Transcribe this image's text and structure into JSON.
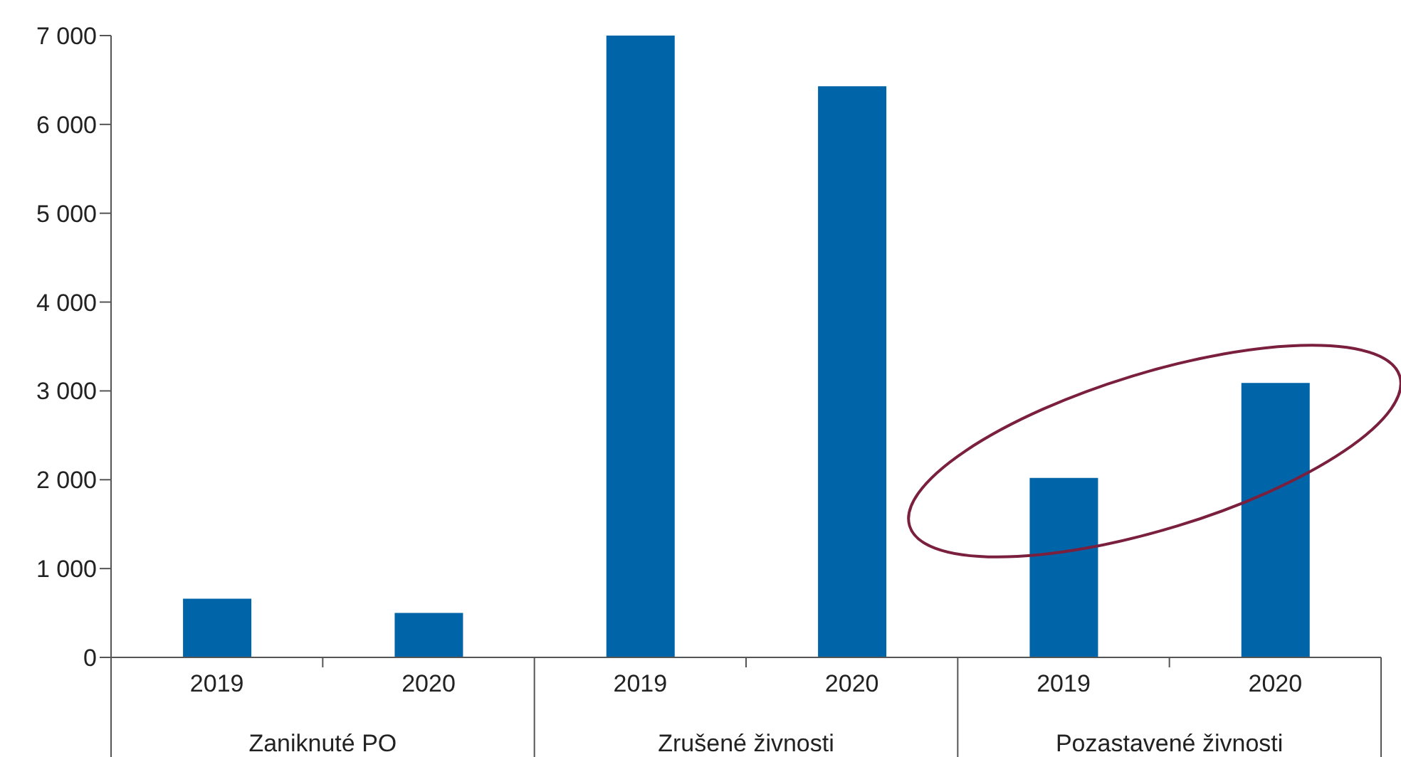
{
  "chart_data": {
    "type": "bar",
    "categories": [
      "2019",
      "2020",
      "2019",
      "2020",
      "2019",
      "2020"
    ],
    "values": [
      660,
      500,
      7000,
      6430,
      2020,
      3090
    ],
    "color": "#0064a8",
    "ylim": [
      0,
      7000
    ],
    "yticks": [
      0,
      {
        "value": 1000,
        "label": "1 000"
      },
      {
        "value": 2000,
        "label": "2 000"
      },
      {
        "value": 3000,
        "label": "3 000"
      },
      {
        "value": 4000,
        "label": "4 000"
      },
      {
        "value": 5000,
        "label": "5 000"
      },
      {
        "value": 6000,
        "label": "6 000"
      },
      {
        "value": 7000,
        "label": "7 000"
      }
    ],
    "grid": false,
    "annotations": [
      "Zaniknuté PO",
      "Zrušené živnosti",
      "Pozastavené živnosti"
    ]
  }
}
